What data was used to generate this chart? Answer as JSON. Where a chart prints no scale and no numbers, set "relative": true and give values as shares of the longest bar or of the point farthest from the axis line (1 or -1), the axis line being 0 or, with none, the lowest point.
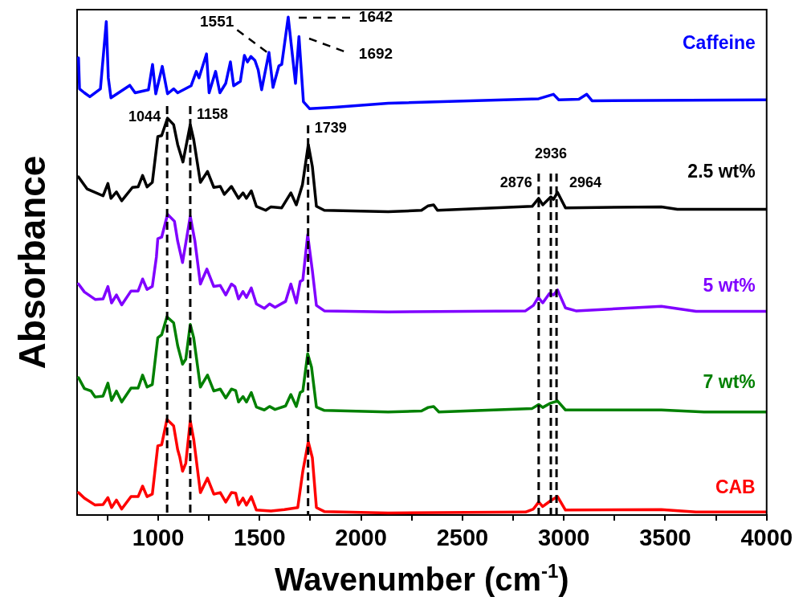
{
  "chart_data": {
    "type": "line",
    "xlabel": "Wavenumber (cm$^{-1}$)",
    "ylabel": "Absorbance",
    "relative": true,
    "xlim": [
      600,
      4000
    ],
    "xticks": [
      {
        "value": 750,
        "label": null
      },
      1000,
      {
        "value": 1250,
        "label": null
      },
      1500,
      {
        "value": 1750,
        "label": null
      },
      2000,
      {
        "value": 2250,
        "label": null
      },
      2500,
      {
        "value": 2750,
        "label": null
      },
      3000,
      {
        "value": 3250,
        "label": null
      },
      3500,
      {
        "value": 3750,
        "label": null
      },
      4000
    ],
    "grid": false,
    "legend": false,
    "marker": "none",
    "line_style": "solid",
    "series": [
      {
        "name": "Caffeine",
        "color": "#0000ff",
        "x": [
          607,
          612,
          636,
          663,
          715,
          744,
          754,
          767,
          860,
          886,
          952,
          972,
          988,
          1020,
          1046,
          1076,
          1096,
          1162,
          1188,
          1201,
          1238,
          1251,
          1283,
          1304,
          1333,
          1356,
          1372,
          1405,
          1425,
          1440,
          1457,
          1477,
          1493,
          1510,
          1546,
          1566,
          1595,
          1609,
          1641,
          1677,
          1694,
          1716,
          1747,
          1870,
          2134,
          2876,
          2949,
          2975,
          3074,
          3113,
          3139,
          4000
        ],
        "values": [
          0.918,
          0.856,
          0.848,
          0.84,
          0.856,
          0.991,
          0.878,
          0.838,
          0.863,
          0.848,
          0.854,
          0.905,
          0.846,
          0.901,
          0.846,
          0.856,
          0.848,
          0.862,
          0.891,
          0.878,
          0.926,
          0.848,
          0.891,
          0.848,
          0.867,
          0.91,
          0.862,
          0.871,
          0.923,
          0.91,
          0.921,
          0.913,
          0.894,
          0.854,
          0.929,
          0.859,
          0.902,
          0.905,
          1.0,
          0.867,
          0.961,
          0.83,
          0.816,
          0.819,
          0.827,
          0.836,
          0.845,
          0.834,
          0.835,
          0.845,
          0.832,
          0.834
        ]
      },
      {
        "name": "2.5 wt%",
        "color": "#000000",
        "x": [
          607,
          649,
          728,
          752,
          767,
          794,
          820,
          873,
          901,
          923,
          945,
          971,
          998,
          1017,
          1046,
          1076,
          1096,
          1122,
          1158,
          1175,
          1208,
          1243,
          1274,
          1306,
          1326,
          1361,
          1396,
          1418,
          1435,
          1459,
          1484,
          1530,
          1556,
          1609,
          1654,
          1681,
          1711,
          1740,
          1760,
          1780,
          1819,
          2134,
          2298,
          2331,
          2358,
          2377,
          2844,
          2876,
          2896,
          2936,
          2949,
          2969,
          3008,
          3481,
          3560,
          4000
        ],
        "values": [
          0.679,
          0.655,
          0.641,
          0.666,
          0.636,
          0.649,
          0.631,
          0.658,
          0.659,
          0.682,
          0.659,
          0.668,
          0.76,
          0.762,
          0.797,
          0.784,
          0.744,
          0.709,
          0.784,
          0.754,
          0.668,
          0.69,
          0.658,
          0.66,
          0.644,
          0.66,
          0.636,
          0.647,
          0.636,
          0.651,
          0.62,
          0.612,
          0.619,
          0.617,
          0.647,
          0.623,
          0.663,
          0.744,
          0.7,
          0.62,
          0.612,
          0.609,
          0.612,
          0.621,
          0.623,
          0.612,
          0.62,
          0.636,
          0.623,
          0.639,
          0.634,
          0.648,
          0.617,
          0.619,
          0.614,
          0.614
        ]
      },
      {
        "name": "5 wt%",
        "color": "#8000ff",
        "x": [
          607,
          636,
          689,
          728,
          752,
          770,
          794,
          820,
          866,
          901,
          923,
          945,
          971,
          991,
          998,
          1017,
          1046,
          1080,
          1096,
          1120,
          1158,
          1181,
          1208,
          1240,
          1274,
          1306,
          1333,
          1361,
          1378,
          1396,
          1418,
          1435,
          1459,
          1484,
          1523,
          1549,
          1576,
          1628,
          1654,
          1681,
          1700,
          1713,
          1737,
          1760,
          1780,
          1819,
          2134,
          2811,
          2850,
          2874,
          2896,
          2929,
          2949,
          2969,
          3008,
          3060,
          3481,
          3652,
          4000
        ],
        "values": [
          0.464,
          0.448,
          0.433,
          0.434,
          0.459,
          0.426,
          0.442,
          0.422,
          0.45,
          0.45,
          0.474,
          0.453,
          0.459,
          0.518,
          0.555,
          0.558,
          0.604,
          0.59,
          0.55,
          0.507,
          0.6,
          0.55,
          0.464,
          0.494,
          0.459,
          0.461,
          0.442,
          0.464,
          0.459,
          0.434,
          0.449,
          0.437,
          0.456,
          0.424,
          0.415,
          0.424,
          0.417,
          0.429,
          0.464,
          0.426,
          0.469,
          0.472,
          0.563,
          0.491,
          0.421,
          0.41,
          0.408,
          0.41,
          0.421,
          0.437,
          0.426,
          0.445,
          0.442,
          0.452,
          0.416,
          0.41,
          0.419,
          0.409,
          0.409
        ]
      },
      {
        "name": "7 wt%",
        "color": "#008000",
        "x": [
          607,
          636,
          669,
          689,
          728,
          752,
          770,
          794,
          820,
          866,
          901,
          923,
          945,
          971,
          998,
          1017,
          1043,
          1076,
          1096,
          1120,
          1136,
          1158,
          1175,
          1208,
          1243,
          1274,
          1306,
          1333,
          1361,
          1382,
          1396,
          1418,
          1435,
          1459,
          1484,
          1523,
          1549,
          1576,
          1628,
          1654,
          1681,
          1700,
          1713,
          1737,
          1756,
          1780,
          1819,
          2134,
          2298,
          2331,
          2358,
          2384,
          2844,
          2876,
          2896,
          2936,
          2969,
          3008,
          3481,
          3691,
          4000
        ],
        "values": [
          0.276,
          0.254,
          0.249,
          0.237,
          0.239,
          0.265,
          0.23,
          0.249,
          0.227,
          0.255,
          0.255,
          0.281,
          0.257,
          0.262,
          0.356,
          0.362,
          0.398,
          0.386,
          0.34,
          0.303,
          0.313,
          0.383,
          0.356,
          0.257,
          0.281,
          0.249,
          0.253,
          0.235,
          0.253,
          0.25,
          0.227,
          0.238,
          0.227,
          0.246,
          0.217,
          0.211,
          0.218,
          0.212,
          0.219,
          0.242,
          0.218,
          0.246,
          0.249,
          0.324,
          0.297,
          0.217,
          0.21,
          0.207,
          0.209,
          0.216,
          0.218,
          0.207,
          0.214,
          0.222,
          0.216,
          0.225,
          0.229,
          0.211,
          0.211,
          0.207,
          0.207
        ]
      },
      {
        "name": "CAB",
        "color": "#ff0000",
        "x": [
          607,
          636,
          689,
          728,
          752,
          770,
          794,
          820,
          866,
          901,
          923,
          945,
          971,
          998,
          1017,
          1043,
          1076,
          1096,
          1106,
          1120,
          1136,
          1158,
          1175,
          1208,
          1243,
          1274,
          1306,
          1333,
          1361,
          1382,
          1396,
          1418,
          1435,
          1459,
          1484,
          1556,
          1622,
          1688,
          1713,
          1740,
          1760,
          1780,
          1819,
          2134,
          2811,
          2850,
          2876,
          2896,
          2936,
          2969,
          3008,
          3481,
          3652,
          4000
        ],
        "values": [
          0.045,
          0.034,
          0.02,
          0.021,
          0.035,
          0.015,
          0.03,
          0.012,
          0.037,
          0.037,
          0.058,
          0.037,
          0.042,
          0.139,
          0.141,
          0.192,
          0.179,
          0.131,
          0.117,
          0.088,
          0.104,
          0.189,
          0.152,
          0.045,
          0.074,
          0.042,
          0.045,
          0.026,
          0.045,
          0.044,
          0.02,
          0.034,
          0.02,
          0.037,
          0.01,
          0.008,
          0.011,
          0.015,
          0.088,
          0.147,
          0.115,
          0.015,
          0.007,
          0.004,
          0.006,
          0.012,
          0.026,
          0.017,
          0.029,
          0.037,
          0.01,
          0.011,
          0.006,
          0.006
        ]
      }
    ],
    "ref_lines": [
      {
        "axis": "x",
        "value": 1044,
        "label": "1044",
        "color": "#000000",
        "line_style": "dashed"
      },
      {
        "axis": "x",
        "value": 1158,
        "label": "1158",
        "color": "#000000",
        "line_style": "dashed"
      },
      {
        "axis": "x",
        "value": 1739,
        "label": "1739",
        "color": "#000000",
        "line_style": "dashed"
      },
      {
        "axis": "x",
        "value": 2876,
        "label": "2876",
        "color": "#000000",
        "line_style": "dashed"
      },
      {
        "axis": "x",
        "value": 2936,
        "label": "2936",
        "color": "#000000",
        "line_style": "dashed"
      },
      {
        "axis": "x",
        "value": 2964,
        "label": "2964",
        "color": "#000000",
        "line_style": "dashed"
      }
    ],
    "annotations": [
      {
        "text": "1551",
        "x": 1551,
        "y": 0.93
      },
      "1642",
      "1692"
    ]
  }
}
